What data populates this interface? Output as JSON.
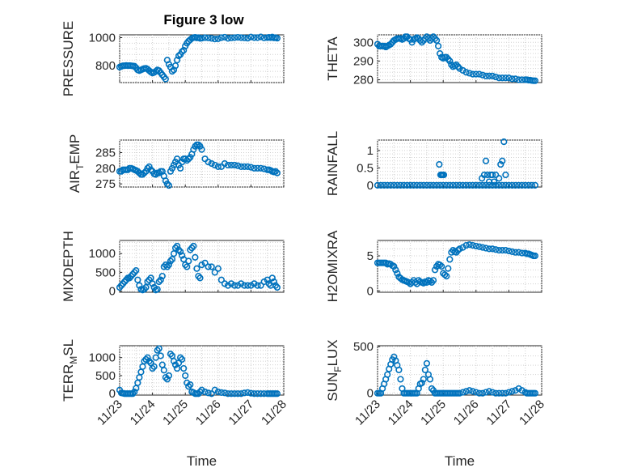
{
  "figure": {
    "title": "Figure 3 low",
    "marker_color": "#0072BD",
    "x_tick_labels": [
      "11/23",
      "11/24",
      "11/25",
      "11/26",
      "11/27",
      "11/28"
    ],
    "x_axis_label": "Time"
  },
  "chart_data": [
    {
      "id": "pressure",
      "type": "scatter",
      "ylabel": "PRESSURE",
      "ylabel_sub": "",
      "ylabel_tail": "",
      "title": "Figure 3 low",
      "xlabel": "",
      "xlim": [
        0,
        5
      ],
      "ylim": [
        680,
        1020
      ],
      "yticks": [
        800,
        1000
      ],
      "ytick_labels": [
        "800",
        "1000"
      ],
      "grid": true,
      "x": [
        0.0,
        0.05,
        0.1,
        0.15,
        0.2,
        0.25,
        0.3,
        0.35,
        0.4,
        0.45,
        0.5,
        0.55,
        0.6,
        0.65,
        0.7,
        0.75,
        0.8,
        0.85,
        0.9,
        0.95,
        1.0,
        1.05,
        1.1,
        1.15,
        1.2,
        1.25,
        1.3,
        1.35,
        1.4,
        1.45,
        1.5,
        1.55,
        1.6,
        1.65,
        1.7,
        1.75,
        1.8,
        1.85,
        1.9,
        1.95,
        2.0,
        2.05,
        2.1,
        2.15,
        2.2,
        2.25,
        2.3,
        2.35,
        2.4,
        2.45,
        2.5,
        2.6,
        2.7,
        2.8,
        2.9,
        3.0,
        3.1,
        3.2,
        3.3,
        3.4,
        3.5,
        3.6,
        3.7,
        3.8,
        3.9,
        4.0,
        4.1,
        4.2,
        4.3,
        4.4,
        4.5,
        4.55,
        4.6,
        4.65,
        4.7,
        4.75,
        4.8
      ],
      "y": [
        790,
        795,
        800,
        800,
        802,
        800,
        801,
        800,
        798,
        797,
        785,
        770,
        765,
        770,
        775,
        780,
        782,
        775,
        765,
        755,
        748,
        752,
        760,
        770,
        765,
        750,
        735,
        720,
        705,
        840,
        810,
        790,
        760,
        770,
        800,
        840,
        870,
        880,
        900,
        910,
        940,
        960,
        975,
        985,
        995,
        1000,
        1002,
        998,
        1000,
        995,
        996,
        1000,
        998,
        995,
        990,
        992,
        1000,
        1003,
        995,
        998,
        1000,
        1002,
        1000,
        998,
        996,
        1004,
        1000,
        1000,
        1005,
        998,
        1000,
        1002,
        1000,
        1004,
        998,
        1000,
        996
      ]
    },
    {
      "id": "theta",
      "type": "scatter",
      "ylabel": "THETA",
      "ylabel_sub": "",
      "ylabel_tail": "",
      "xlabel": "",
      "xlim": [
        0,
        5
      ],
      "ylim": [
        278.5,
        304
      ],
      "yticks": [
        280,
        290,
        300
      ],
      "ytick_labels": [
        "280",
        "290",
        "300"
      ],
      "grid": true,
      "x": [
        0.0,
        0.05,
        0.1,
        0.15,
        0.2,
        0.25,
        0.3,
        0.35,
        0.4,
        0.45,
        0.5,
        0.55,
        0.6,
        0.65,
        0.7,
        0.75,
        0.8,
        0.85,
        0.9,
        0.95,
        1.0,
        1.05,
        1.1,
        1.15,
        1.2,
        1.25,
        1.3,
        1.35,
        1.4,
        1.45,
        1.5,
        1.55,
        1.6,
        1.65,
        1.7,
        1.75,
        1.8,
        1.85,
        1.9,
        1.95,
        2.0,
        2.05,
        2.1,
        2.15,
        2.2,
        2.25,
        2.3,
        2.35,
        2.4,
        2.45,
        2.5,
        2.6,
        2.7,
        2.8,
        2.9,
        3.0,
        3.1,
        3.2,
        3.3,
        3.4,
        3.5,
        3.6,
        3.7,
        3.8,
        3.9,
        4.0,
        4.1,
        4.2,
        4.3,
        4.4,
        4.5,
        4.55,
        4.6,
        4.65,
        4.7,
        4.75,
        4.8
      ],
      "y": [
        299,
        298,
        298,
        298,
        298,
        297.5,
        298,
        298.5,
        299,
        300,
        301,
        301.5,
        302,
        302,
        302,
        301.5,
        302,
        303,
        303,
        302,
        301.5,
        300,
        301.5,
        302,
        302.5,
        302,
        301,
        300,
        301,
        302,
        303,
        302,
        301,
        302,
        303,
        302,
        301,
        298,
        294,
        292,
        291.5,
        292,
        292,
        291,
        290,
        288,
        287,
        287.5,
        288,
        287,
        286,
        285,
        284,
        283.5,
        283,
        283,
        283,
        282.5,
        282,
        282,
        282,
        281.5,
        281,
        281,
        281,
        281,
        280.5,
        280.5,
        280,
        280,
        280,
        280,
        279.8,
        279.8,
        279.6,
        279.5,
        279.5
      ]
    },
    {
      "id": "air_temp",
      "type": "scatter",
      "ylabel": "AIR",
      "ylabel_sub": "T",
      "ylabel_tail": "EMP",
      "xlabel": "",
      "xlim": [
        0,
        5
      ],
      "ylim": [
        274,
        289
      ],
      "yticks": [
        275,
        280,
        285
      ],
      "ytick_labels": [
        "275",
        "280",
        "285"
      ],
      "grid": true,
      "x": [
        0.0,
        0.05,
        0.1,
        0.15,
        0.2,
        0.25,
        0.3,
        0.35,
        0.4,
        0.45,
        0.5,
        0.55,
        0.6,
        0.65,
        0.7,
        0.75,
        0.8,
        0.85,
        0.9,
        0.95,
        1.0,
        1.05,
        1.1,
        1.15,
        1.2,
        1.25,
        1.3,
        1.35,
        1.4,
        1.45,
        1.5,
        1.55,
        1.6,
        1.65,
        1.7,
        1.75,
        1.8,
        1.85,
        1.9,
        1.95,
        2.0,
        2.05,
        2.1,
        2.15,
        2.2,
        2.25,
        2.3,
        2.35,
        2.4,
        2.45,
        2.5,
        2.6,
        2.7,
        2.8,
        2.9,
        3.0,
        3.1,
        3.2,
        3.3,
        3.4,
        3.5,
        3.6,
        3.7,
        3.8,
        3.9,
        4.0,
        4.1,
        4.2,
        4.3,
        4.4,
        4.5,
        4.55,
        4.6,
        4.65,
        4.7,
        4.75,
        4.8
      ],
      "y": [
        279,
        279,
        279.5,
        279.5,
        279.5,
        279.5,
        280,
        280,
        279.8,
        279.5,
        279.3,
        279,
        278.5,
        278,
        278,
        278.5,
        279,
        280,
        280.5,
        279.5,
        279,
        278.2,
        278,
        278.5,
        278.5,
        279,
        279,
        277.5,
        276,
        275,
        274.5,
        279,
        280,
        281,
        282,
        283,
        281,
        280,
        282,
        283,
        283,
        282.5,
        283,
        283.5,
        284.5,
        286,
        287,
        287.5,
        287.5,
        287,
        286,
        283,
        282,
        281.5,
        281,
        280.5,
        280.5,
        281.5,
        281,
        281,
        281,
        280.8,
        280.5,
        280.5,
        280.5,
        280.3,
        280,
        280,
        280,
        279.8,
        279.5,
        279.5,
        279.3,
        279,
        278.8,
        279,
        278.5
      ]
    },
    {
      "id": "rainfall",
      "type": "scatter",
      "ylabel": "RAINFALL",
      "ylabel_sub": "",
      "ylabel_tail": "",
      "xlabel": "",
      "xlim": [
        0,
        5
      ],
      "ylim": [
        -0.05,
        1.3
      ],
      "yticks": [
        0,
        0.5,
        1
      ],
      "ytick_labels": [
        "0",
        "0.5",
        "1"
      ],
      "grid": true,
      "x": [
        0.0,
        0.1,
        0.2,
        0.3,
        0.4,
        0.5,
        0.6,
        0.7,
        0.8,
        0.9,
        1.0,
        1.1,
        1.2,
        1.3,
        1.4,
        1.5,
        1.6,
        1.7,
        1.8,
        1.9,
        2.0,
        2.1,
        2.2,
        2.3,
        2.4,
        2.5,
        2.6,
        2.7,
        2.8,
        2.9,
        3.0,
        3.1,
        3.2,
        3.3,
        3.4,
        3.5,
        3.6,
        3.7,
        3.8,
        3.9,
        4.0,
        4.1,
        4.2,
        4.3,
        4.4,
        4.5,
        4.6,
        4.7,
        4.8,
        1.88,
        1.92,
        1.95,
        1.98,
        2.02,
        3.18,
        3.25,
        3.3,
        3.35,
        3.4,
        3.45,
        3.5,
        3.55,
        3.6,
        3.7,
        3.75,
        3.8,
        3.85,
        3.9
      ],
      "y": [
        0,
        0,
        0,
        0,
        0,
        0,
        0,
        0,
        0,
        0,
        0,
        0,
        0,
        0,
        0,
        0,
        0,
        0,
        0,
        0,
        0,
        0,
        0,
        0,
        0,
        0,
        0,
        0,
        0,
        0,
        0,
        0,
        0,
        0,
        0,
        0,
        0,
        0,
        0,
        0,
        0,
        0,
        0,
        0,
        0,
        0,
        0,
        0,
        0,
        0.6,
        0.3,
        0.3,
        0.3,
        0.3,
        0.2,
        0.3,
        0.7,
        0.3,
        0.1,
        0.3,
        0.3,
        0.1,
        0.3,
        0.2,
        0.6,
        0.7,
        1.25,
        0.3
      ]
    },
    {
      "id": "mixdepth",
      "type": "scatter",
      "ylabel": "MIXDEPTH",
      "ylabel_sub": "",
      "ylabel_tail": "",
      "xlabel": "",
      "xlim": [
        0,
        5
      ],
      "ylim": [
        -30,
        1350
      ],
      "yticks": [
        0,
        500,
        1000
      ],
      "ytick_labels": [
        "0",
        "500",
        "1000"
      ],
      "grid": true,
      "x": [
        0.0,
        0.05,
        0.1,
        0.15,
        0.2,
        0.25,
        0.3,
        0.35,
        0.4,
        0.45,
        0.5,
        0.55,
        0.6,
        0.65,
        0.7,
        0.75,
        0.8,
        0.85,
        0.9,
        0.95,
        1.0,
        1.05,
        1.1,
        1.15,
        1.2,
        1.25,
        1.3,
        1.35,
        1.4,
        1.45,
        1.5,
        1.55,
        1.6,
        1.65,
        1.7,
        1.75,
        1.8,
        1.85,
        1.9,
        1.95,
        2.0,
        2.05,
        2.1,
        2.15,
        2.2,
        2.25,
        2.3,
        2.35,
        2.4,
        2.45,
        2.5,
        2.6,
        2.7,
        2.8,
        2.9,
        3.0,
        3.1,
        3.2,
        3.3,
        3.4,
        3.5,
        3.6,
        3.7,
        3.8,
        3.9,
        4.0,
        4.1,
        4.2,
        4.3,
        4.4,
        4.5,
        4.55,
        4.6,
        4.65,
        4.7,
        4.75,
        4.8
      ],
      "y": [
        100,
        150,
        200,
        250,
        300,
        350,
        350,
        400,
        450,
        500,
        550,
        300,
        150,
        50,
        30,
        50,
        100,
        250,
        300,
        350,
        200,
        100,
        30,
        50,
        250,
        300,
        400,
        650,
        700,
        650,
        700,
        800,
        850,
        1000,
        1150,
        1200,
        1100,
        1050,
        950,
        850,
        700,
        650,
        800,
        1100,
        1150,
        1200,
        900,
        600,
        400,
        350,
        700,
        750,
        650,
        650,
        500,
        600,
        300,
        200,
        150,
        200,
        150,
        150,
        200,
        150,
        150,
        150,
        200,
        150,
        150,
        250,
        300,
        200,
        150,
        350,
        250,
        150,
        100
      ]
    },
    {
      "id": "h2omixra",
      "type": "scatter",
      "ylabel": "H2OMIXRA",
      "ylabel_sub": "",
      "ylabel_tail": "",
      "xlabel": "",
      "xlim": [
        0,
        5
      ],
      "ylim": [
        -0.2,
        7.2
      ],
      "yticks": [
        0,
        5
      ],
      "ytick_labels": [
        "0",
        "5"
      ],
      "grid": true,
      "x": [
        0.0,
        0.05,
        0.1,
        0.15,
        0.2,
        0.25,
        0.3,
        0.35,
        0.4,
        0.45,
        0.5,
        0.55,
        0.6,
        0.65,
        0.7,
        0.75,
        0.8,
        0.85,
        0.9,
        0.95,
        1.0,
        1.05,
        1.1,
        1.15,
        1.2,
        1.25,
        1.3,
        1.35,
        1.4,
        1.45,
        1.5,
        1.55,
        1.6,
        1.65,
        1.7,
        1.75,
        1.8,
        1.85,
        1.9,
        1.95,
        2.0,
        2.05,
        2.1,
        2.15,
        2.2,
        2.25,
        2.3,
        2.35,
        2.4,
        2.45,
        2.5,
        2.6,
        2.7,
        2.8,
        2.9,
        3.0,
        3.1,
        3.2,
        3.3,
        3.4,
        3.5,
        3.6,
        3.7,
        3.8,
        3.9,
        4.0,
        4.1,
        4.2,
        4.3,
        4.4,
        4.5,
        4.55,
        4.6,
        4.65,
        4.7,
        4.75,
        4.8
      ],
      "y": [
        4,
        4,
        4,
        4,
        4,
        4,
        3.8,
        3.9,
        3.8,
        3.6,
        3.5,
        3,
        2.5,
        2,
        1.8,
        1.6,
        1.5,
        1.4,
        1.3,
        1.2,
        1,
        1.2,
        1.5,
        1.2,
        1,
        1.5,
        1.3,
        1.2,
        1.1,
        1.3,
        1.2,
        1.5,
        1.4,
        1.2,
        1.5,
        3,
        3.5,
        3.8,
        3.7,
        3.5,
        2.5,
        2.3,
        2.1,
        3.2,
        4.5,
        5.5,
        5.8,
        5.6,
        5.5,
        5.8,
        6,
        6.2,
        6.5,
        6.6,
        6.5,
        6.4,
        6.3,
        6.2,
        6.1,
        6,
        6,
        5.9,
        5.8,
        5.8,
        5.8,
        5.7,
        5.6,
        5.5,
        5.5,
        5.4,
        5.4,
        5.3,
        5.3,
        5.2,
        5.1,
        5,
        5
      ]
    },
    {
      "id": "terr_msl",
      "type": "scatter",
      "ylabel": "TERR",
      "ylabel_sub": "M",
      "ylabel_tail": "SL",
      "xlabel": "Time",
      "xlim": [
        0,
        5
      ],
      "ylim": [
        -40,
        1330
      ],
      "yticks": [
        0,
        500,
        1000
      ],
      "ytick_labels": [
        "0",
        "500",
        "1000"
      ],
      "grid": true,
      "x": [
        0.0,
        0.05,
        0.1,
        0.15,
        0.2,
        0.25,
        0.3,
        0.35,
        0.4,
        0.45,
        0.5,
        0.55,
        0.6,
        0.65,
        0.7,
        0.75,
        0.8,
        0.85,
        0.9,
        0.95,
        1.0,
        1.05,
        1.1,
        1.15,
        1.2,
        1.25,
        1.3,
        1.35,
        1.4,
        1.45,
        1.5,
        1.55,
        1.6,
        1.65,
        1.7,
        1.75,
        1.8,
        1.85,
        1.9,
        1.95,
        2.0,
        2.05,
        2.1,
        2.15,
        2.2,
        2.25,
        2.3,
        2.35,
        2.4,
        2.45,
        2.5,
        2.6,
        2.7,
        2.8,
        2.9,
        3.0,
        3.1,
        3.2,
        3.3,
        3.4,
        3.5,
        3.6,
        3.7,
        3.8,
        3.9,
        4.0,
        4.1,
        4.2,
        4.3,
        4.4,
        4.5,
        4.55,
        4.6,
        4.65,
        4.7,
        4.75,
        4.8
      ],
      "y": [
        100,
        20,
        10,
        0,
        0,
        0,
        0,
        0,
        0,
        50,
        150,
        300,
        450,
        600,
        750,
        900,
        950,
        1000,
        900,
        850,
        700,
        750,
        1000,
        1200,
        1250,
        1050,
        800,
        650,
        450,
        400,
        500,
        1100,
        1050,
        900,
        800,
        700,
        850,
        1000,
        950,
        700,
        500,
        300,
        200,
        250,
        50,
        30,
        0,
        0,
        0,
        50,
        100,
        50,
        20,
        0,
        100,
        50,
        30,
        20,
        0,
        0,
        0,
        0,
        0,
        20,
        30,
        10,
        0,
        0,
        0,
        0,
        0,
        0,
        0,
        0,
        0,
        0,
        0
      ]
    },
    {
      "id": "sun_flux",
      "type": "scatter",
      "ylabel": "SUN",
      "ylabel_sub": "F",
      "ylabel_tail": "LUX",
      "xlabel": "Time",
      "xlim": [
        0,
        5
      ],
      "ylim": [
        -20,
        510
      ],
      "yticks": [
        0,
        500
      ],
      "ytick_labels": [
        "0",
        "500"
      ],
      "grid": true,
      "x": [
        0.0,
        0.05,
        0.1,
        0.15,
        0.2,
        0.25,
        0.3,
        0.35,
        0.4,
        0.45,
        0.5,
        0.55,
        0.6,
        0.65,
        0.7,
        0.75,
        0.8,
        0.85,
        0.9,
        0.95,
        1.0,
        1.05,
        1.1,
        1.15,
        1.2,
        1.25,
        1.3,
        1.35,
        1.4,
        1.45,
        1.5,
        1.55,
        1.6,
        1.65,
        1.7,
        1.75,
        1.8,
        1.85,
        1.9,
        1.95,
        2.0,
        2.05,
        2.1,
        2.15,
        2.2,
        2.25,
        2.3,
        2.35,
        2.4,
        2.45,
        2.5,
        2.6,
        2.7,
        2.8,
        2.9,
        3.0,
        3.1,
        3.2,
        3.3,
        3.4,
        3.5,
        3.6,
        3.7,
        3.8,
        3.9,
        4.0,
        4.1,
        4.2,
        4.3,
        4.4,
        4.5,
        4.55,
        4.6,
        4.65,
        4.7,
        4.75,
        4.8
      ],
      "y": [
        0,
        0,
        0,
        50,
        100,
        150,
        200,
        260,
        310,
        360,
        390,
        350,
        300,
        250,
        150,
        50,
        0,
        0,
        0,
        0,
        0,
        0,
        0,
        0,
        0,
        50,
        100,
        110,
        150,
        250,
        320,
        200,
        150,
        50,
        30,
        0,
        0,
        0,
        0,
        0,
        0,
        0,
        0,
        0,
        0,
        0,
        0,
        0,
        0,
        0,
        0,
        10,
        20,
        30,
        20,
        10,
        0,
        0,
        10,
        20,
        10,
        0,
        0,
        0,
        0,
        10,
        20,
        30,
        50,
        30,
        10,
        0,
        0,
        0,
        0,
        0,
        0
      ]
    }
  ]
}
